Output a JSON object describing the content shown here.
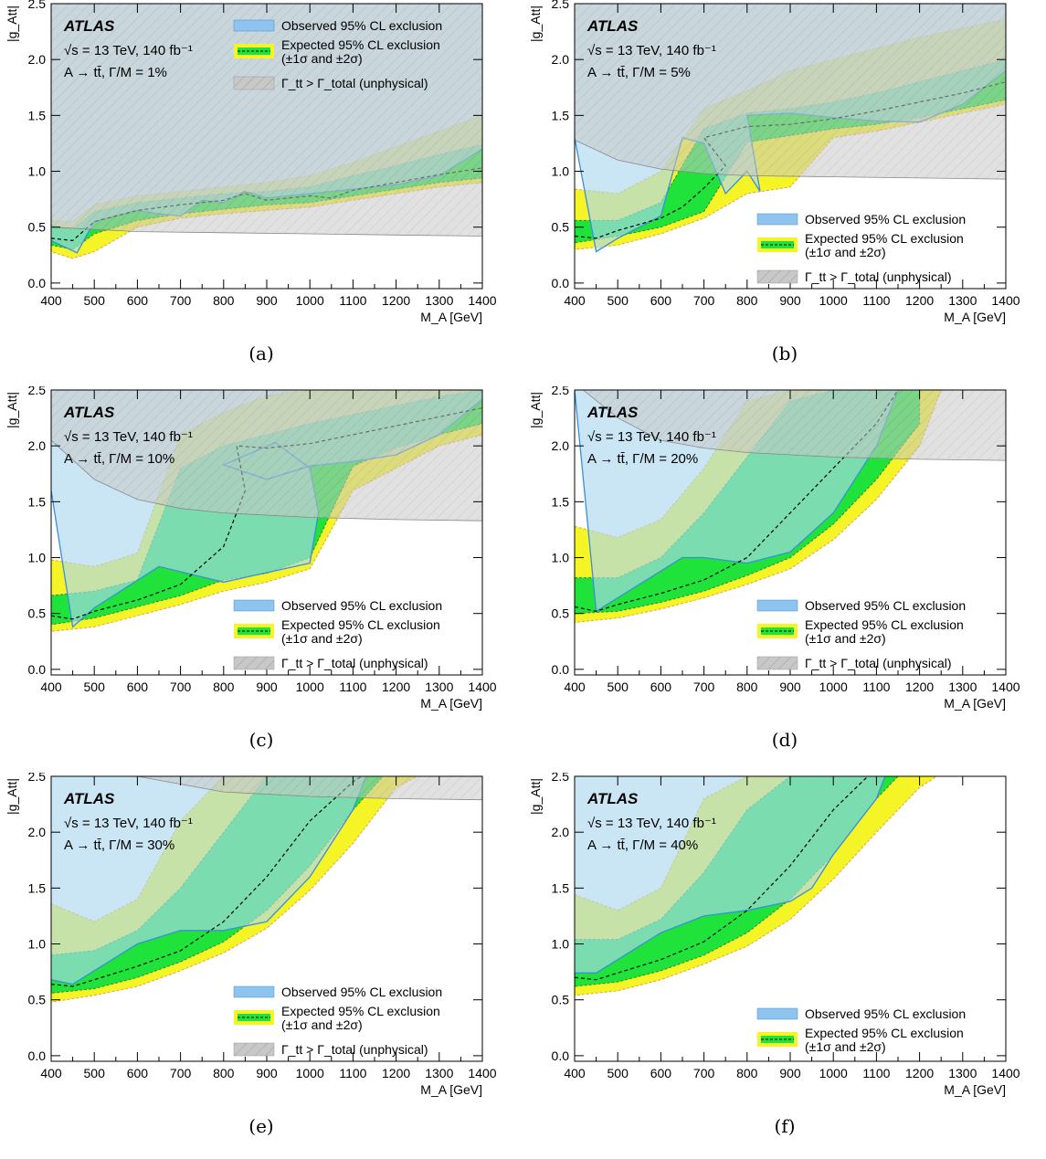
{
  "chart_data": [
    {
      "type": "area",
      "panel": "(a)",
      "experiment": "ATLAS",
      "energy_text": "√s = 13 TeV, 140 fb⁻¹",
      "model_text": "A → tt̄, Γ/M = 1%",
      "xlabel": "M_A [GeV]",
      "ylabel": "|g_Att|",
      "xlim": [
        400,
        1400
      ],
      "ylim": [
        -0.05,
        2.5
      ],
      "xticks": [
        400,
        500,
        600,
        700,
        800,
        900,
        1000,
        1100,
        1200,
        1300,
        1400
      ],
      "yticks": [
        0.0,
        0.5,
        1.0,
        1.5,
        2.0
      ],
      "legend_position": "top-right",
      "legend": [
        "Observed 95% CL exclusion",
        "Expected 95% CL exclusion",
        "(±1σ and ±2σ)",
        "Γ_tt > Γ_total (unphysical)"
      ],
      "unphysical_boundary": {
        "x": [
          400,
          500,
          600,
          800,
          1000,
          1200,
          1400
        ],
        "y": [
          0.5,
          0.48,
          0.46,
          0.45,
          0.44,
          0.43,
          0.42
        ]
      },
      "expected_median": {
        "x": [
          400,
          450,
          500,
          600,
          700,
          800,
          850,
          900,
          1000,
          1050,
          1100,
          1200,
          1300,
          1400
        ],
        "y": [
          0.4,
          0.38,
          0.55,
          0.65,
          0.7,
          0.74,
          0.8,
          0.74,
          0.78,
          0.76,
          0.83,
          0.9,
          0.97,
          1.03
        ]
      },
      "band_1sigma": {
        "x": [
          400,
          450,
          500,
          600,
          700,
          800,
          900,
          1000,
          1100,
          1200,
          1300,
          1400
        ],
        "lower": [
          0.34,
          0.3,
          0.44,
          0.56,
          0.62,
          0.66,
          0.7,
          0.72,
          0.78,
          0.84,
          0.9,
          0.94
        ],
        "upper": [
          0.52,
          0.48,
          0.64,
          0.72,
          0.76,
          0.8,
          0.82,
          0.86,
          0.96,
          1.05,
          1.15,
          1.24
        ]
      },
      "band_2sigma": {
        "x": [
          400,
          450,
          500,
          600,
          700,
          800,
          900,
          1000,
          1100,
          1200,
          1300,
          1400
        ],
        "lower": [
          0.28,
          0.22,
          0.28,
          0.5,
          0.58,
          0.62,
          0.65,
          0.68,
          0.74,
          0.8,
          0.86,
          0.9
        ],
        "upper": [
          0.56,
          0.55,
          0.7,
          0.78,
          0.82,
          0.86,
          0.9,
          0.96,
          1.08,
          1.22,
          1.36,
          1.5
        ]
      },
      "observed": {
        "x": [
          400,
          460,
          500,
          600,
          650,
          700,
          750,
          800,
          850,
          900,
          1000,
          1100,
          1200,
          1300,
          1400
        ],
        "y": [
          0.38,
          0.27,
          0.55,
          0.65,
          0.62,
          0.6,
          0.74,
          0.72,
          0.82,
          0.76,
          0.8,
          0.84,
          0.88,
          0.96,
          1.2
        ]
      }
    },
    {
      "type": "area",
      "panel": "(b)",
      "experiment": "ATLAS",
      "energy_text": "√s = 13 TeV, 140 fb⁻¹",
      "model_text": "A → tt̄, Γ/M = 5%",
      "xlabel": "M_A [GeV]",
      "ylabel": "|g_Att|",
      "xlim": [
        400,
        1400
      ],
      "ylim": [
        -0.05,
        2.5
      ],
      "xticks": [
        400,
        500,
        600,
        700,
        800,
        900,
        1000,
        1100,
        1200,
        1300,
        1400
      ],
      "yticks": [
        0.0,
        0.5,
        1.0,
        1.5,
        2.0
      ],
      "legend_position": "bottom-right",
      "legend": [
        "Observed 95% CL exclusion",
        "Expected 95% CL exclusion",
        "(±1σ and ±2σ)",
        "Γ_tt > Γ_total (unphysical)"
      ],
      "unphysical_boundary": {
        "x": [
          400,
          500,
          600,
          700,
          800,
          1000,
          1200,
          1400
        ],
        "y": [
          1.28,
          1.1,
          1.02,
          0.98,
          0.96,
          0.95,
          0.94,
          0.93
        ]
      },
      "expected_median": {
        "x": [
          400,
          450,
          500,
          600,
          650,
          700,
          750,
          700,
          800,
          900,
          1000,
          1100,
          1200,
          1300,
          1400
        ],
        "y": [
          0.42,
          0.4,
          0.47,
          0.58,
          0.68,
          0.85,
          1.05,
          1.3,
          1.4,
          1.42,
          1.47,
          1.54,
          1.62,
          1.7,
          1.8
        ]
      },
      "band_1sigma": {
        "x": [
          400,
          500,
          600,
          700,
          800,
          900,
          1000,
          1100,
          1200,
          1300,
          1400
        ],
        "lower": [
          0.36,
          0.42,
          0.5,
          0.64,
          1.26,
          1.32,
          1.38,
          1.42,
          1.48,
          1.56,
          1.64
        ],
        "upper": [
          0.56,
          0.56,
          0.72,
          1.38,
          1.52,
          1.56,
          1.62,
          1.7,
          1.8,
          1.9,
          2.0
        ]
      },
      "band_2sigma": {
        "x": [
          400,
          500,
          600,
          700,
          800,
          900,
          1000,
          1100,
          1200,
          1300,
          1400
        ],
        "lower": [
          0.3,
          0.34,
          0.44,
          0.58,
          0.8,
          0.86,
          1.3,
          1.36,
          1.44,
          1.52,
          1.6
        ],
        "upper": [
          0.84,
          0.8,
          1.0,
          1.56,
          1.72,
          1.9,
          2.0,
          2.1,
          2.2,
          2.28,
          2.36
        ]
      },
      "observed": {
        "x": [
          400,
          450,
          500,
          600,
          650,
          700,
          750,
          800,
          830,
          800,
          900,
          1000,
          1100,
          1200,
          1300,
          1400
        ],
        "y": [
          1.3,
          0.28,
          0.4,
          0.6,
          1.3,
          1.25,
          0.8,
          1.0,
          0.82,
          1.5,
          1.52,
          1.48,
          1.45,
          1.44,
          1.6,
          1.9
        ]
      }
    },
    {
      "type": "area",
      "panel": "(c)",
      "experiment": "ATLAS",
      "energy_text": "√s = 13 TeV, 140 fb⁻¹",
      "model_text": "A → tt̄, Γ/M = 10%",
      "xlabel": "M_A [GeV]",
      "ylabel": "|g_Att|",
      "xlim": [
        400,
        1400
      ],
      "ylim": [
        -0.05,
        2.5
      ],
      "xticks": [
        400,
        500,
        600,
        700,
        800,
        900,
        1000,
        1100,
        1200,
        1300,
        1400
      ],
      "yticks": [
        0.0,
        0.5,
        1.0,
        1.5,
        2.0
      ],
      "legend_position": "bottom-right",
      "legend": [
        "Observed 95% CL exclusion",
        "Expected 95% CL exclusion",
        "(±1σ and ±2σ)",
        "Γ_tt > Γ_total (unphysical)"
      ],
      "unphysical_boundary": {
        "x": [
          400,
          500,
          600,
          700,
          800,
          1000,
          1200,
          1400
        ],
        "y": [
          2.05,
          1.7,
          1.52,
          1.44,
          1.4,
          1.36,
          1.34,
          1.33
        ]
      },
      "expected_median": {
        "x": [
          400,
          450,
          500,
          600,
          700,
          800,
          850,
          830,
          900,
          1000,
          1100,
          1200,
          1300,
          1400
        ],
        "y": [
          0.48,
          0.45,
          0.52,
          0.62,
          0.76,
          1.1,
          1.6,
          2.0,
          1.98,
          2.02,
          2.1,
          2.18,
          2.26,
          2.34
        ]
      },
      "band_1sigma": {
        "x": [
          400,
          500,
          600,
          700,
          800,
          900,
          1000,
          1100,
          1200,
          1300,
          1400
        ],
        "lower": [
          0.4,
          0.46,
          0.56,
          0.66,
          0.8,
          0.86,
          1.0,
          1.82,
          1.98,
          2.1,
          2.2
        ],
        "upper": [
          0.66,
          0.7,
          0.8,
          1.8,
          2.0,
          2.1,
          2.2,
          2.28,
          2.36,
          2.44,
          2.5
        ]
      },
      "band_2sigma": {
        "x": [
          400,
          500,
          600,
          700,
          800,
          900,
          1000,
          1100,
          1200,
          1300,
          1400
        ],
        "lower": [
          0.34,
          0.38,
          0.48,
          0.58,
          0.7,
          0.78,
          0.9,
          1.6,
          1.8,
          2.0,
          2.1
        ],
        "upper": [
          0.98,
          0.92,
          1.04,
          2.1,
          2.3,
          2.45,
          2.5,
          2.5,
          2.5,
          2.5,
          2.5
        ]
      },
      "observed": {
        "x": [
          400,
          450,
          500,
          650,
          800,
          1000,
          1020,
          1000,
          920,
          800,
          900,
          1000,
          1100,
          1200,
          1300,
          1400
        ],
        "y": [
          1.6,
          0.38,
          0.55,
          0.92,
          0.78,
          0.95,
          1.4,
          1.8,
          2.03,
          1.83,
          1.7,
          1.82,
          1.86,
          1.92,
          2.1,
          2.42
        ]
      }
    },
    {
      "type": "area",
      "panel": "(d)",
      "experiment": "ATLAS",
      "energy_text": "√s = 13 TeV, 140 fb⁻¹",
      "model_text": "A → tt̄, Γ/M = 20%",
      "xlabel": "M_A [GeV]",
      "ylabel": "|g_Att|",
      "xlim": [
        400,
        1400
      ],
      "ylim": [
        -0.05,
        2.5
      ],
      "xticks": [
        400,
        500,
        600,
        700,
        800,
        900,
        1000,
        1100,
        1200,
        1300,
        1400
      ],
      "yticks": [
        0.0,
        0.5,
        1.0,
        1.5,
        2.0
      ],
      "legend_position": "bottom-right",
      "legend": [
        "Observed 95% CL exclusion",
        "Expected 95% CL exclusion",
        "(±1σ and ±2σ)",
        "Γ_tt > Γ_total (unphysical)"
      ],
      "unphysical_boundary": {
        "x": [
          420,
          500,
          600,
          700,
          800,
          1000,
          1200,
          1400
        ],
        "y": [
          2.5,
          2.25,
          2.05,
          1.98,
          1.94,
          1.9,
          1.88,
          1.87
        ]
      },
      "expected_median": {
        "x": [
          400,
          450,
          500,
          600,
          700,
          800,
          900,
          1000,
          1100,
          1150
        ],
        "y": [
          0.56,
          0.52,
          0.58,
          0.68,
          0.8,
          1.0,
          1.4,
          1.8,
          2.2,
          2.5
        ]
      },
      "band_1sigma": {
        "x": [
          400,
          500,
          600,
          700,
          800,
          900,
          1000,
          1100,
          1200
        ],
        "lower": [
          0.5,
          0.52,
          0.6,
          0.7,
          0.84,
          1.0,
          1.3,
          1.7,
          2.2
        ],
        "upper": [
          0.82,
          0.82,
          1.0,
          1.4,
          1.9,
          2.4,
          2.5,
          2.5,
          2.5
        ]
      },
      "band_2sigma": {
        "x": [
          400,
          500,
          600,
          700,
          800,
          900,
          1000,
          1100,
          1200,
          1250
        ],
        "lower": [
          0.42,
          0.46,
          0.54,
          0.64,
          0.76,
          0.9,
          1.16,
          1.52,
          2.0,
          2.5
        ],
        "upper": [
          1.28,
          1.18,
          1.34,
          1.8,
          2.4,
          2.5,
          2.5,
          2.5,
          2.5,
          2.5
        ]
      },
      "observed": {
        "x": [
          400,
          450,
          650,
          700,
          800,
          900,
          1000,
          1100,
          1150
        ],
        "y": [
          2.5,
          0.52,
          1.0,
          1.0,
          0.95,
          1.05,
          1.4,
          2.0,
          2.5
        ]
      }
    },
    {
      "type": "area",
      "panel": "(e)",
      "experiment": "ATLAS",
      "energy_text": "√s = 13 TeV, 140 fb⁻¹",
      "model_text": "A → tt̄, Γ/M = 30%",
      "xlabel": "M_A [GeV]",
      "ylabel": "|g_Att|",
      "xlim": [
        400,
        1400
      ],
      "ylim": [
        -0.05,
        2.5
      ],
      "xticks": [
        400,
        500,
        600,
        700,
        800,
        900,
        1000,
        1100,
        1200,
        1300,
        1400
      ],
      "yticks": [
        0.0,
        0.5,
        1.0,
        1.5,
        2.0
      ],
      "legend_position": "bottom-right",
      "legend": [
        "Observed 95% CL exclusion",
        "Expected 95% CL exclusion",
        "(±1σ and ±2σ)",
        "Γ_tt > Γ_total (unphysical)"
      ],
      "unphysical_boundary": {
        "x": [
          600,
          800,
          1000,
          1200,
          1400
        ],
        "y": [
          2.5,
          2.36,
          2.32,
          2.3,
          2.29
        ]
      },
      "expected_median": {
        "x": [
          400,
          450,
          500,
          600,
          700,
          800,
          900,
          1000,
          1100,
          1120
        ],
        "y": [
          0.64,
          0.62,
          0.68,
          0.8,
          0.94,
          1.2,
          1.6,
          2.1,
          2.45,
          2.5
        ]
      },
      "band_1sigma": {
        "x": [
          400,
          500,
          600,
          700,
          800,
          900,
          1000,
          1100,
          1170
        ],
        "lower": [
          0.56,
          0.6,
          0.7,
          0.84,
          1.02,
          1.3,
          1.7,
          2.2,
          2.5
        ],
        "upper": [
          0.9,
          0.94,
          1.12,
          1.5,
          2.0,
          2.5,
          2.5,
          2.5,
          2.5
        ]
      },
      "band_2sigma": {
        "x": [
          400,
          500,
          600,
          700,
          800,
          900,
          1000,
          1100,
          1200,
          1250
        ],
        "lower": [
          0.48,
          0.54,
          0.62,
          0.76,
          0.92,
          1.14,
          1.48,
          1.9,
          2.4,
          2.5
        ],
        "upper": [
          1.36,
          1.2,
          1.4,
          2.1,
          2.5,
          2.5,
          2.5,
          2.5,
          2.5,
          2.5
        ]
      },
      "observed": {
        "x": [
          400,
          450,
          600,
          700,
          800,
          900,
          1000,
          1100,
          1130
        ],
        "y": [
          0.68,
          0.64,
          1.0,
          1.12,
          1.12,
          1.2,
          1.6,
          2.2,
          2.5
        ]
      }
    },
    {
      "type": "area",
      "panel": "(f)",
      "experiment": "ATLAS",
      "energy_text": "√s = 13 TeV, 140 fb⁻¹",
      "model_text": "A → tt̄, Γ/M = 40%",
      "xlabel": "M_A [GeV]",
      "ylabel": "|g_Att|",
      "xlim": [
        400,
        1400
      ],
      "ylim": [
        -0.05,
        2.5
      ],
      "xticks": [
        400,
        500,
        600,
        700,
        800,
        900,
        1000,
        1100,
        1200,
        1300,
        1400
      ],
      "yticks": [
        0.0,
        0.5,
        1.0,
        1.5,
        2.0
      ],
      "legend_position": "bottom-right",
      "legend": [
        "Observed 95% CL exclusion",
        "Expected 95% CL exclusion",
        "(±1σ and ±2σ)"
      ],
      "unphysical_boundary": null,
      "expected_median": {
        "x": [
          400,
          450,
          500,
          600,
          700,
          800,
          900,
          1000,
          1080
        ],
        "y": [
          0.7,
          0.68,
          0.74,
          0.86,
          1.02,
          1.3,
          1.7,
          2.2,
          2.5
        ]
      },
      "band_1sigma": {
        "x": [
          400,
          500,
          600,
          700,
          800,
          900,
          1000,
          1100,
          1150
        ],
        "lower": [
          0.62,
          0.66,
          0.76,
          0.9,
          1.1,
          1.4,
          1.8,
          2.3,
          2.5
        ],
        "upper": [
          1.04,
          1.04,
          1.22,
          1.64,
          2.2,
          2.5,
          2.5,
          2.5,
          2.5
        ]
      },
      "band_2sigma": {
        "x": [
          400,
          500,
          600,
          700,
          800,
          900,
          1000,
          1100,
          1200,
          1240
        ],
        "lower": [
          0.54,
          0.58,
          0.68,
          0.82,
          0.98,
          1.22,
          1.58,
          2.0,
          2.4,
          2.5
        ],
        "upper": [
          1.44,
          1.3,
          1.5,
          2.3,
          2.5,
          2.5,
          2.5,
          2.5,
          2.5,
          2.5
        ]
      },
      "observed": {
        "x": [
          400,
          450,
          600,
          700,
          800,
          900,
          950,
          1000,
          1100,
          1120
        ],
        "y": [
          0.74,
          0.74,
          1.1,
          1.25,
          1.3,
          1.38,
          1.5,
          1.8,
          2.3,
          2.5
        ]
      }
    }
  ]
}
